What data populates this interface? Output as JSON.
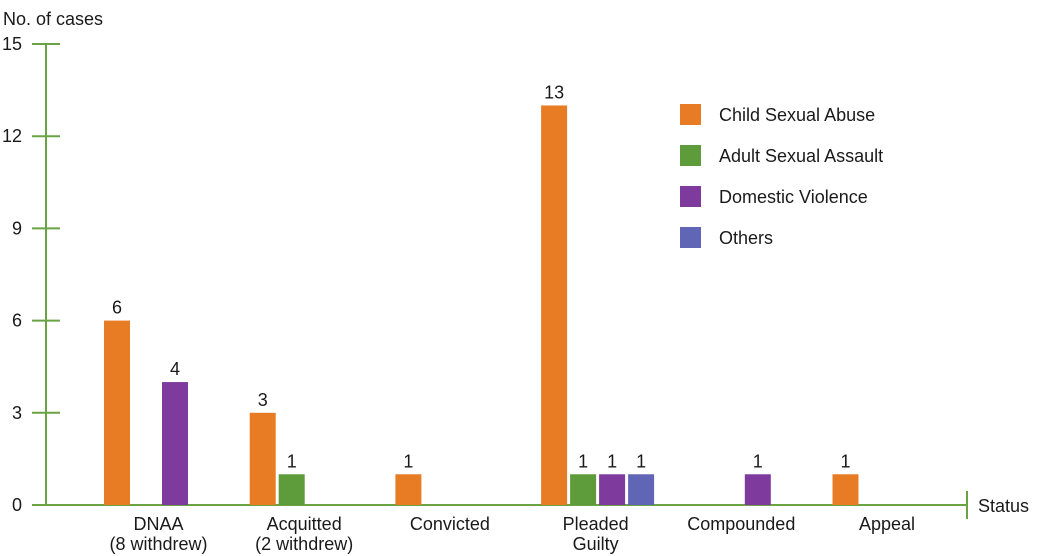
{
  "chart_data": {
    "type": "bar",
    "ylabel": "No. of cases",
    "xlabel": "Status",
    "ylim": [
      0,
      15
    ],
    "yticks": [
      0,
      3,
      6,
      9,
      12,
      15
    ],
    "grid": false,
    "legend_position": "top-right",
    "categories": [
      [
        "DNAA",
        "(8 withdrew)"
      ],
      [
        "Acquitted",
        "(2 withdrew)"
      ],
      [
        "Convicted"
      ],
      [
        "Pleaded",
        "Guilty"
      ],
      [
        "Compounded"
      ],
      [
        "Appeal"
      ]
    ],
    "series": [
      {
        "name": "Child Sexual Abuse",
        "color": "#E87C25",
        "values": [
          6,
          3,
          1,
          13,
          null,
          1
        ]
      },
      {
        "name": "Adult Sexual Assault",
        "color": "#5E9B3A",
        "values": [
          null,
          1,
          null,
          1,
          null,
          null
        ]
      },
      {
        "name": "Domestic Violence",
        "color": "#7E3A9C",
        "values": [
          4,
          null,
          null,
          1,
          1,
          null
        ]
      },
      {
        "name": "Others",
        "color": "#6066B5",
        "values": [
          null,
          null,
          null,
          1,
          null,
          null
        ]
      }
    ],
    "axis_color": "#6AA344"
  }
}
